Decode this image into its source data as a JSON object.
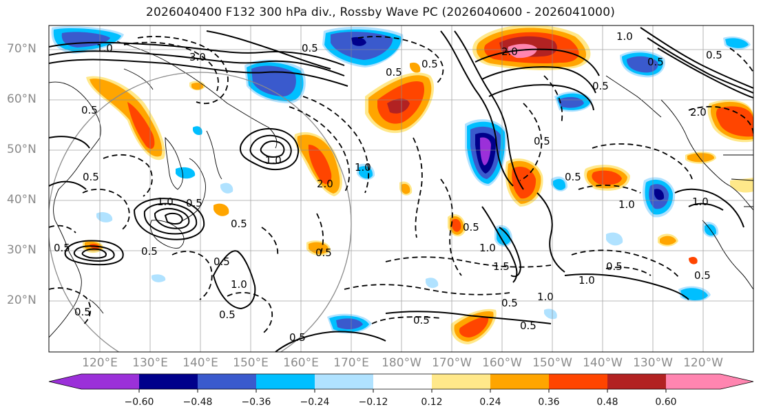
{
  "title": "2026040400 F132 300 hPa div., Rossby Wave PC (2026040600 - 2026041000)",
  "lat_labels": [
    "70°N",
    "60°N",
    "50°N",
    "40°N",
    "30°N",
    "20°N"
  ],
  "lon_labels": [
    "120°E",
    "130°E",
    "140°E",
    "150°E",
    "160°E",
    "170°E",
    "180°W",
    "170°W",
    "160°W",
    "150°W",
    "140°W",
    "130°W",
    "120°W"
  ],
  "colorbar": {
    "colors": [
      "#9b30d9",
      "#00008b",
      "#3a5acd",
      "#00bfff",
      "#b0e2ff",
      "#ffffff",
      "#ffe88a",
      "#ffa500",
      "#ff4500",
      "#b22222",
      "#ff85b0"
    ],
    "ticks": [
      "−0.60",
      "−0.48",
      "−0.36",
      "−0.24",
      "−0.12",
      "0.12",
      "0.24",
      "0.36",
      "0.48",
      "0.60"
    ]
  },
  "contour_labels": [
    "0.5",
    "1.0",
    "1.5",
    "2.0",
    "3.0"
  ]
}
